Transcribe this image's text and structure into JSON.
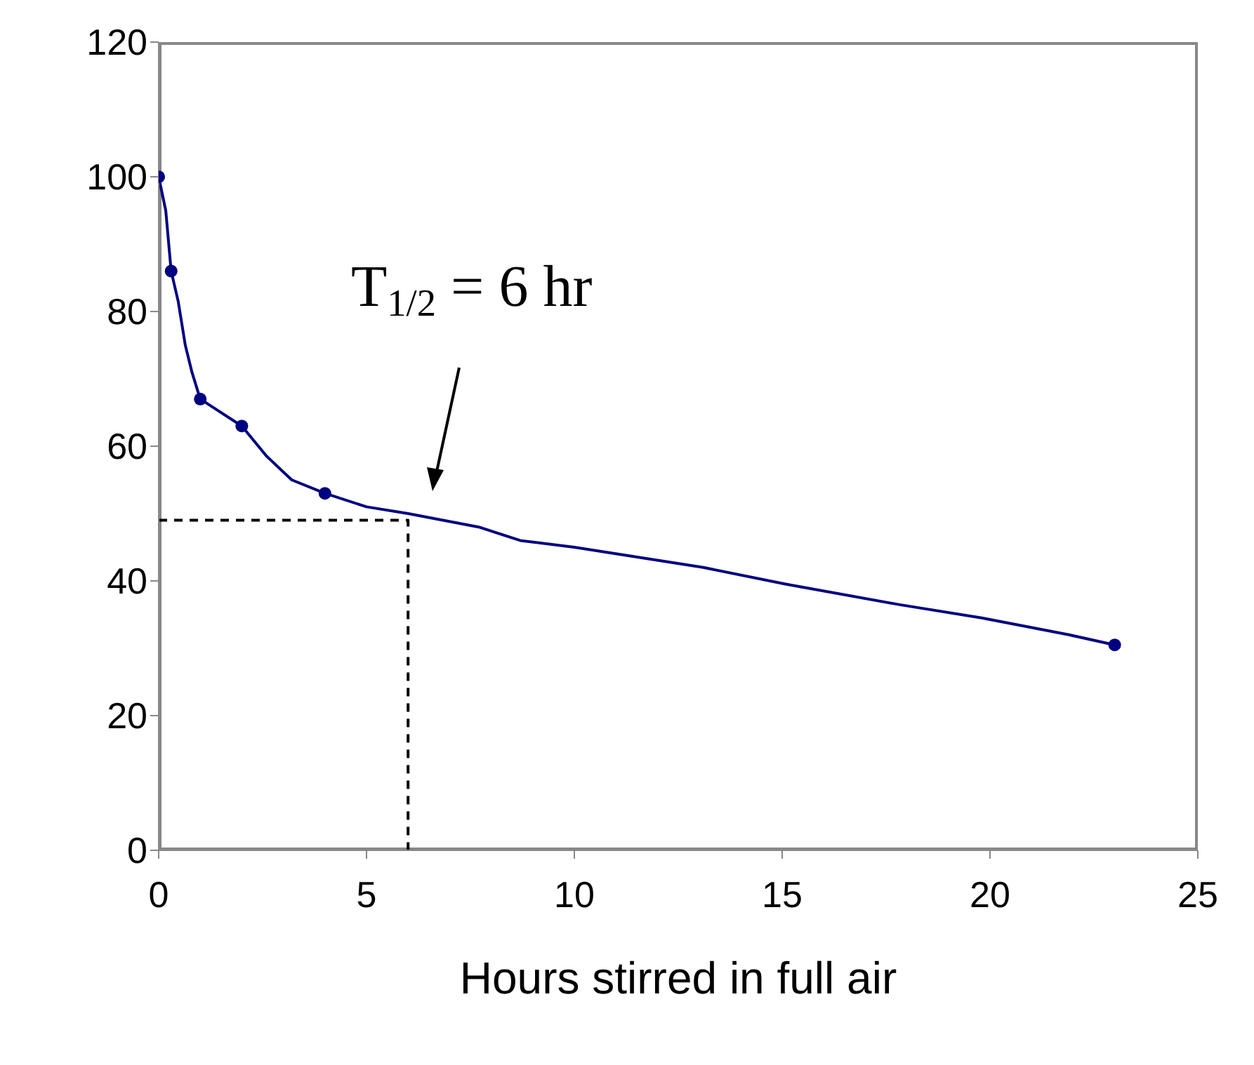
{
  "chart_data": {
    "type": "line",
    "xlabel": "Hours stirred in full air",
    "xlim": [
      0,
      25
    ],
    "xticks": [
      0,
      5,
      10,
      15,
      20,
      25
    ],
    "ylim": [
      0,
      120
    ],
    "yticks": [
      0,
      20,
      40,
      60,
      80,
      100,
      120
    ],
    "grid": false,
    "annotations": [
      "T$_{1/2}$ = 6 hr"
    ],
    "series": [
      {
        "color": "#000080",
        "marker": "none",
        "line_style": "solid",
        "x": [
          0,
          0.17,
          0.3,
          0.47,
          0.64,
          0.8,
          1,
          1.25,
          2,
          2.6,
          3.2,
          4,
          5,
          6,
          7.7,
          8.7,
          10,
          13.1,
          15.1,
          17.8,
          19.8,
          21.9,
          23
        ],
        "values": [
          100,
          95,
          86,
          81.5,
          75,
          71,
          67,
          66,
          63,
          58.5,
          55,
          53,
          51,
          50,
          48,
          46,
          45,
          42,
          39.5,
          36.5,
          34.5,
          32,
          30.5
        ]
      },
      {
        "type": "scatter",
        "color": "#000080",
        "marker": "circle",
        "x": [
          0,
          0.3,
          1,
          2,
          4,
          23
        ],
        "values": [
          100,
          86,
          67,
          63,
          53,
          30.5
        ]
      },
      {
        "type": "line",
        "color": "#000000",
        "marker": "none",
        "line_style": "dashed",
        "x": [
          0,
          6,
          6
        ],
        "values": [
          49,
          49,
          0
        ]
      }
    ]
  }
}
